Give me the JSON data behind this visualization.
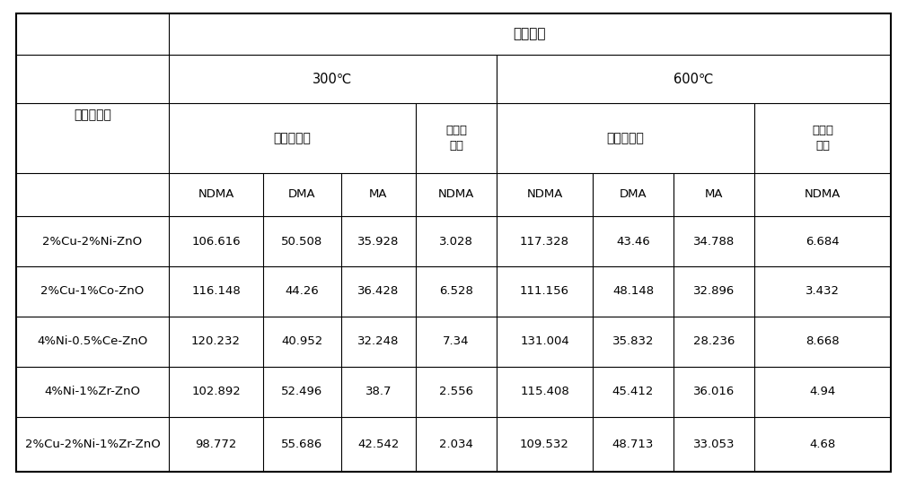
{
  "title_row": "煅烧温度",
  "temp_300": "300℃",
  "temp_600": "600℃",
  "photo_reaction": "光反应阶段",
  "elec_reaction": "电反应\n阶段",
  "catalyst_label": "催化剂组成",
  "col_headers": [
    "NDMA",
    "DMA",
    "MA",
    "NDMA",
    "NDMA",
    "DMA",
    "MA",
    "NDMA"
  ],
  "row_labels": [
    "2%Cu-2%Ni-ZnO",
    "2%Cu-1%Co-ZnO",
    "4%Ni-0.5%Ce-ZnO",
    "4%Ni-1%Zr-ZnO",
    "2%Cu-2%Ni-1%Zr-ZnO"
  ],
  "data": [
    [
      "106.616",
      "50.508",
      "35.928",
      "3.028",
      "117.328",
      "43.46",
      "34.788",
      "6.684"
    ],
    [
      "116.148",
      "44.26",
      "36.428",
      "6.528",
      "111.156",
      "48.148",
      "32.896",
      "3.432"
    ],
    [
      "120.232",
      "40.952",
      "32.248",
      "7.34",
      "131.004",
      "35.832",
      "28.236",
      "8.668"
    ],
    [
      "102.892",
      "52.496",
      "38.7",
      "2.556",
      "115.408",
      "45.412",
      "36.016",
      "4.94"
    ],
    [
      "98.772",
      "55.686",
      "42.542",
      "2.034",
      "109.532",
      "48.713",
      "33.053",
      "4.68"
    ]
  ],
  "bg_color": "#ffffff",
  "line_color": "#000000",
  "text_color": "#000000"
}
